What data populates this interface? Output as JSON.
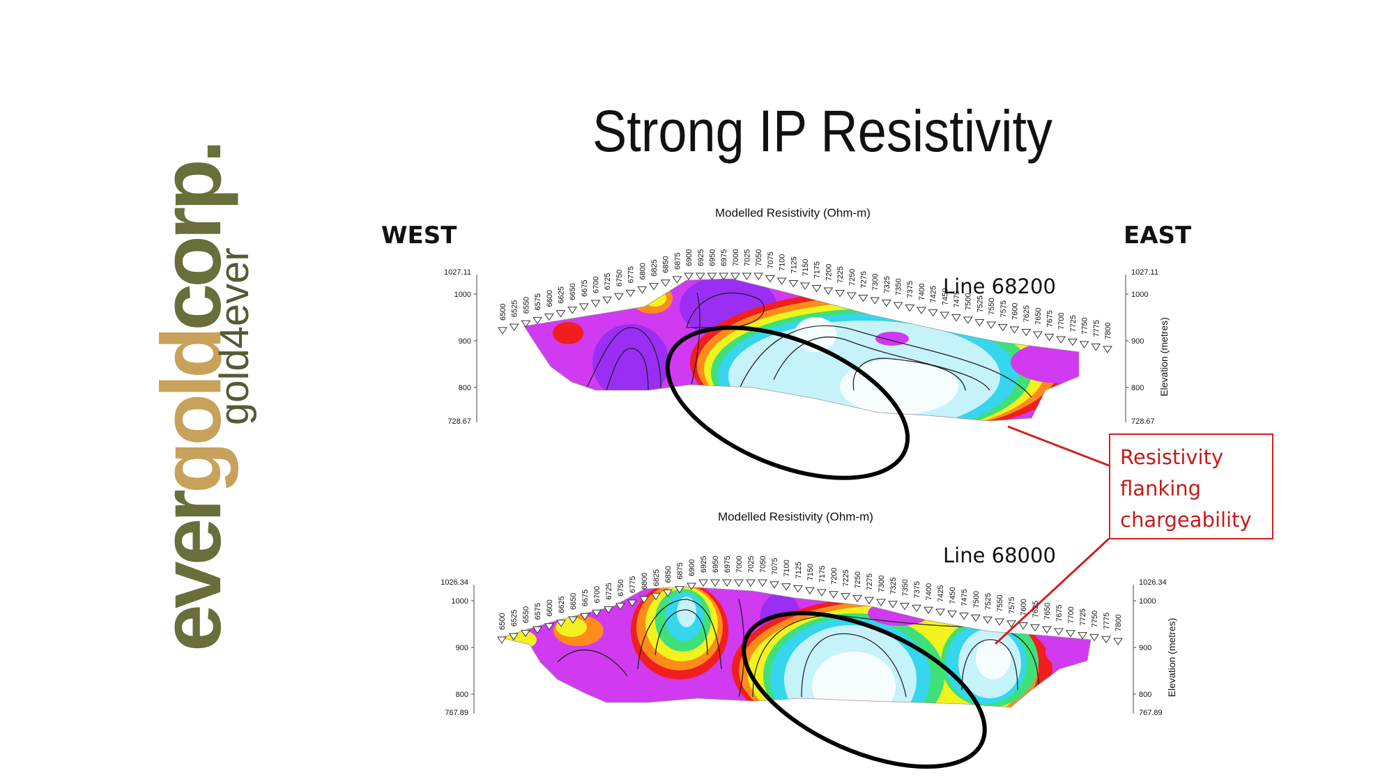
{
  "slide": {
    "title": "Strong IP Resistivity",
    "west_label": "WEST",
    "east_label": "EAST"
  },
  "logo": {
    "parts": [
      {
        "text": "ever",
        "color": "#6a6e3a"
      },
      {
        "text": "gold",
        "color": "#c8a25a"
      },
      {
        "text": "corp.",
        "color": "#6a6e3a"
      }
    ],
    "tagline": "gold4ever"
  },
  "callout": {
    "lines": [
      "Resistivity",
      "flanking",
      "chargeability"
    ],
    "color": "#d21f1f"
  },
  "colors": {
    "magenta": "#d03af0",
    "purple": "#9a2ef5",
    "red": "#f01e1e",
    "orange": "#ff8c1a",
    "yellow": "#f2f21e",
    "green": "#3fe07a",
    "cyan": "#35d6ee",
    "lightcyan": "#c6f2fa",
    "white": "#f6fdff"
  },
  "panels": [
    {
      "title": "Modelled Resistivity (Ohm-m)",
      "line_label": "Line 68200",
      "elev_top": "1027.11",
      "elev_bottom": "728.67",
      "elev_ticks": [
        "1000",
        "900",
        "800"
      ],
      "axis_label": "Elevation (metres)",
      "stations": [
        "6500",
        "6525",
        "6550",
        "6575",
        "6600",
        "6625",
        "6650",
        "6675",
        "6700",
        "6725",
        "6750",
        "6775",
        "6800",
        "6825",
        "6850",
        "6875",
        "6900",
        "6925",
        "6950",
        "6975",
        "7000",
        "7025",
        "7050",
        "7075",
        "7100",
        "7125",
        "7150",
        "7175",
        "7200",
        "7225",
        "7250",
        "7275",
        "7300",
        "7325",
        "7350",
        "7375",
        "7400",
        "7425",
        "7450",
        "7475",
        "7500",
        "7525",
        "7550",
        "7575",
        "7600",
        "7625",
        "7650",
        "7675",
        "7700",
        "7725",
        "7750",
        "7775",
        "7800"
      ]
    },
    {
      "title": "Modelled Resistivity (Ohm-m)",
      "line_label": "Line 68000",
      "elev_top": "1026.34",
      "elev_bottom": "767.89",
      "elev_ticks": [
        "1000",
        "900",
        "800"
      ],
      "axis_label": "Elevation (metres)",
      "stations": [
        "6500",
        "6525",
        "6550",
        "6575",
        "6600",
        "6625",
        "6650",
        "6675",
        "6700",
        "6725",
        "6750",
        "6775",
        "6800",
        "6825",
        "6850",
        "6875",
        "6900",
        "6925",
        "6950",
        "6975",
        "7000",
        "7025",
        "7050",
        "7075",
        "7100",
        "7125",
        "7150",
        "7175",
        "7200",
        "7225",
        "7250",
        "7275",
        "7300",
        "7325",
        "7350",
        "7375",
        "7400",
        "7425",
        "7450",
        "7475",
        "7500",
        "7525",
        "7550",
        "7575",
        "7600",
        "7625",
        "7650",
        "7675",
        "7700",
        "7725",
        "7750",
        "7775",
        "7800"
      ]
    }
  ]
}
